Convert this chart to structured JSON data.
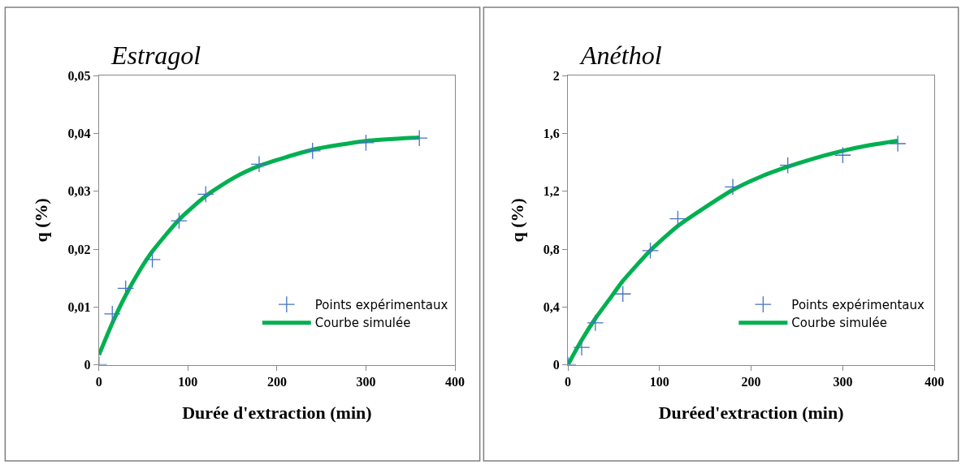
{
  "chart_data": [
    {
      "type": "scatter",
      "title": "Estragol",
      "xlabel": "Durée d'extraction (min)",
      "ylabel": "q (%)",
      "xlim": [
        0,
        400
      ],
      "ylim": [
        0,
        0.05
      ],
      "xticks": [
        0,
        100,
        200,
        300,
        400
      ],
      "yticks": [
        0,
        {
          "value": 0.01,
          "label": "0,01"
        },
        {
          "value": 0.02,
          "label": "0,02"
        },
        {
          "value": 0.03,
          "label": "0,03"
        },
        {
          "value": 0.04,
          "label": "0,04"
        },
        {
          "value": 0.05,
          "label": "0,05"
        }
      ],
      "legend": "bottom right",
      "series": [
        {
          "name": "Points expérimentaux",
          "marker": "cross",
          "color": "#4472c4",
          "x": [
            0,
            15,
            30,
            60,
            90,
            120,
            180,
            240,
            300,
            360
          ],
          "values": [
            0,
            0.0088,
            0.0132,
            0.0182,
            0.0249,
            0.0295,
            0.0347,
            0.037,
            0.0384,
            0.0392
          ]
        },
        {
          "name": "Courbe simulée",
          "type": "line",
          "marker": "none",
          "color": "#00b050",
          "x": [
            0,
            15,
            30,
            45,
            60,
            90,
            120,
            150,
            180,
            240,
            300,
            360
          ],
          "values": [
            0.0017,
            0.0072,
            0.012,
            0.0161,
            0.0196,
            0.0251,
            0.0292,
            0.0322,
            0.0344,
            0.0372,
            0.0387,
            0.0393
          ]
        }
      ]
    },
    {
      "type": "scatter",
      "title": "Anéthol",
      "xlabel": "Duréed'extraction (min)",
      "ylabel": "q (%)",
      "xlim": [
        0,
        400
      ],
      "ylim": [
        0,
        2
      ],
      "xticks": [
        0,
        100,
        200,
        300,
        400
      ],
      "yticks": [
        0,
        {
          "value": 0.4,
          "label": "0,4"
        },
        {
          "value": 0.8,
          "label": "0,8"
        },
        {
          "value": 1.2,
          "label": "1,2"
        },
        {
          "value": 1.6,
          "label": "1,6"
        },
        2
      ],
      "legend": "bottom right",
      "series": [
        {
          "name": "Points expérimentaux",
          "marker": "cross",
          "color": "#4472c4",
          "x": [
            0,
            15,
            30,
            60,
            90,
            120,
            180,
            240,
            300,
            360
          ],
          "values": [
            0,
            0.12,
            0.29,
            0.49,
            0.79,
            1.01,
            1.23,
            1.38,
            1.45,
            1.53
          ]
        },
        {
          "name": "Courbe simulée",
          "type": "line",
          "marker": "none",
          "color": "#00b050",
          "x": [
            0,
            15,
            30,
            45,
            60,
            90,
            120,
            150,
            180,
            210,
            240,
            270,
            300,
            330,
            360
          ],
          "values": [
            0,
            0.17,
            0.32,
            0.45,
            0.58,
            0.79,
            0.96,
            1.09,
            1.21,
            1.3,
            1.37,
            1.43,
            1.48,
            1.52,
            1.55
          ]
        }
      ]
    }
  ]
}
